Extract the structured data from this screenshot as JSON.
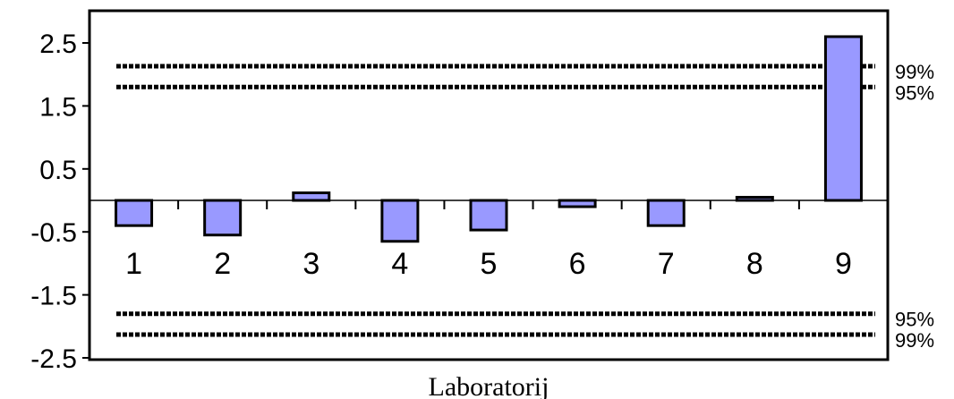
{
  "chart_data": {
    "type": "bar",
    "xlabel": "Laboratorij",
    "ylabel": "",
    "ylim": [
      -2.5,
      2.5
    ],
    "yticks": [
      "2.5",
      "1.5",
      "0.5",
      "-0.5",
      "-1.5",
      "-2.5"
    ],
    "categories": [
      "1",
      "2",
      "3",
      "4",
      "5",
      "6",
      "7",
      "8",
      "9"
    ],
    "values": [
      -0.4,
      -0.55,
      0.12,
      -0.65,
      -0.47,
      -0.1,
      -0.4,
      0.05,
      2.6
    ],
    "bar_color": "#9999ff",
    "reference_lines": [
      {
        "value": 2.13,
        "label": "99%"
      },
      {
        "value": 1.8,
        "label": "95%"
      },
      {
        "value": -1.8,
        "label": "95%"
      },
      {
        "value": -2.13,
        "label": "99%"
      }
    ]
  }
}
